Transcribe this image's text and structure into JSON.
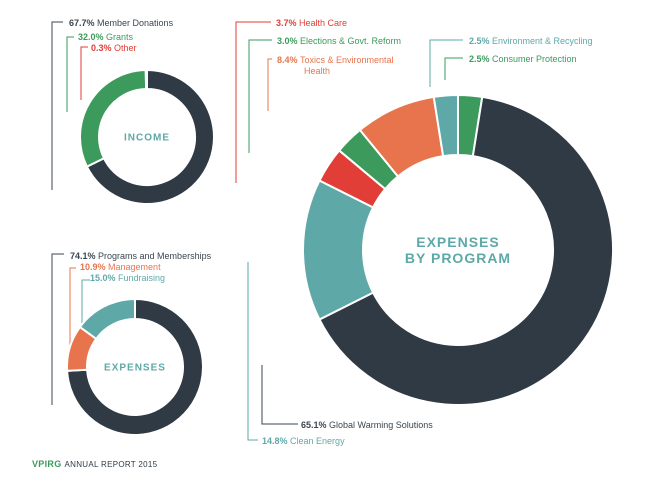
{
  "footer": {
    "logo": "VPIRG",
    "text": "ANNUAL REPORT 2015"
  },
  "colors": {
    "dark": "#2f3a45",
    "green": "#3c9a5c",
    "red": "#e03e36",
    "orange": "#e8744e",
    "teal": "#5fa8a8",
    "line_dark": "#3a4650"
  },
  "chart_data": [
    {
      "type": "pie",
      "title": "INCOME",
      "slices": [
        {
          "label": "Member Donations",
          "value": 67.7,
          "display": "67.7%",
          "color": "#2f3a45"
        },
        {
          "label": "Grants",
          "value": 32.0,
          "display": "32.0%",
          "color": "#3c9a5c"
        },
        {
          "label": "Other",
          "value": 0.3,
          "display": "0.3%",
          "color": "#e03e36"
        }
      ]
    },
    {
      "type": "pie",
      "title": "EXPENSES",
      "slices": [
        {
          "label": "Programs and Memberships",
          "value": 74.1,
          "display": "74.1%",
          "color": "#2f3a45"
        },
        {
          "label": "Management",
          "value": 10.9,
          "display": "10.9%",
          "color": "#e8744e"
        },
        {
          "label": "Fundraising",
          "value": 15.0,
          "display": "15.0%",
          "color": "#5fa8a8"
        }
      ]
    },
    {
      "type": "pie",
      "title": "EXPENSES BY PROGRAM",
      "title_lines": [
        "EXPENSES",
        "BY PROGRAM"
      ],
      "slices": [
        {
          "label": "Global Warming Solutions",
          "value": 65.1,
          "display": "65.1%",
          "color": "#2f3a45"
        },
        {
          "label": "Clean Energy",
          "value": 14.8,
          "display": "14.8%",
          "color": "#5fa8a8"
        },
        {
          "label": "Health Care",
          "value": 3.7,
          "display": "3.7%",
          "color": "#e03e36"
        },
        {
          "label": "Elections & Govt. Reform",
          "value": 3.0,
          "display": "3.0%",
          "color": "#3c9a5c"
        },
        {
          "label": "Toxics & Environmental Health",
          "value": 8.4,
          "display": "8.4%",
          "color": "#e8744e",
          "label_lines": [
            "Toxics & Environmental",
            "Health"
          ]
        },
        {
          "label": "Environment & Recycling",
          "value": 2.5,
          "display": "2.5%",
          "color": "#5fa8a8"
        },
        {
          "label": "Consumer Protection",
          "value": 2.5,
          "display": "2.5%",
          "color": "#3c9a5c"
        }
      ]
    }
  ]
}
